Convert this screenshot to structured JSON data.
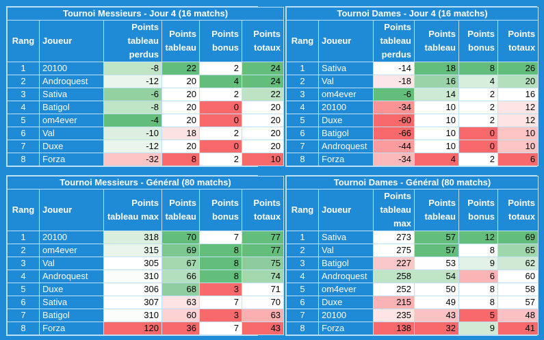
{
  "tables": [
    {
      "id": "men-day4",
      "title": "Tournoi Messieurs - Jour 4 (16 matchs)",
      "headers": [
        "Rang",
        "Joueur",
        "Points tableau perdus",
        "Points tableau",
        "Points bonus",
        "Points totaux"
      ],
      "rows": [
        {
          "rang": "1",
          "joueur": "20100",
          "values": [
            "-8",
            "22",
            "2",
            "24"
          ],
          "colors": [
            "#c0e4c6",
            "#63be7b",
            "#ffffff",
            "#63be7b"
          ]
        },
        {
          "rang": "2",
          "joueur": "Androquest",
          "values": [
            "-12",
            "20",
            "4",
            "24"
          ],
          "colors": [
            "#eaf5eb",
            "#ffffff",
            "#63be7b",
            "#63be7b"
          ]
        },
        {
          "rang": "3",
          "joueur": "Sativa",
          "values": [
            "-6",
            "20",
            "2",
            "22"
          ],
          "colors": [
            "#94d1a1",
            "#ffffff",
            "#ffffff",
            "#bde3c4"
          ]
        },
        {
          "rang": "4",
          "joueur": "Batigol",
          "values": [
            "-8",
            "20",
            "0",
            "20"
          ],
          "colors": [
            "#c0e4c6",
            "#ffffff",
            "#f8696b",
            "#ffffff"
          ]
        },
        {
          "rang": "5",
          "joueur": "om4ever",
          "values": [
            "-4",
            "20",
            "0",
            "20"
          ],
          "colors": [
            "#63be7b",
            "#ffffff",
            "#f8696b",
            "#ffffff"
          ]
        },
        {
          "rang": "6",
          "joueur": "Val",
          "values": [
            "-10",
            "18",
            "2",
            "20"
          ],
          "colors": [
            "#dcefe0",
            "#fde2e3",
            "#ffffff",
            "#ffffff"
          ]
        },
        {
          "rang": "7",
          "joueur": "Duxe",
          "values": [
            "-12",
            "20",
            "0",
            "20"
          ],
          "colors": [
            "#eaf5eb",
            "#ffffff",
            "#f8696b",
            "#ffffff"
          ]
        },
        {
          "rang": "8",
          "joueur": "Forza",
          "values": [
            "-32",
            "8",
            "2",
            "10"
          ],
          "colors": [
            "#fbc5c6",
            "#f8696b",
            "#ffffff",
            "#f8696b"
          ]
        }
      ]
    },
    {
      "id": "women-day4",
      "title": "Tournoi Dames - Jour 4 (16 matchs)",
      "headers": [
        "Rang",
        "Joueur",
        "Points tableau perdus",
        "Points tableau",
        "Points bonus",
        "Points totaux"
      ],
      "rows": [
        {
          "rang": "1",
          "joueur": "Sativa",
          "values": [
            "-14",
            "18",
            "8",
            "26"
          ],
          "colors": [
            "#ffffff",
            "#63be7b",
            "#63be7b",
            "#63be7b"
          ]
        },
        {
          "rang": "2",
          "joueur": "Val",
          "values": [
            "-18",
            "16",
            "4",
            "20"
          ],
          "colors": [
            "#fde6e7",
            "#9ad3a7",
            "#d8eedc",
            "#b3dfbd"
          ]
        },
        {
          "rang": "3",
          "joueur": "om4ever",
          "values": [
            "-6",
            "14",
            "2",
            "16"
          ],
          "colors": [
            "#63be7b",
            "#cdead4",
            "#ffffff",
            "#ffffff"
          ]
        },
        {
          "rang": "4",
          "joueur": "20100",
          "values": [
            "-34",
            "10",
            "2",
            "12"
          ],
          "colors": [
            "#f99394",
            "#ffffff",
            "#ffffff",
            "#fde5e6"
          ]
        },
        {
          "rang": "5",
          "joueur": "Duxe",
          "values": [
            "-60",
            "10",
            "2",
            "12"
          ],
          "colors": [
            "#f8696b",
            "#ffffff",
            "#ffffff",
            "#fde5e6"
          ]
        },
        {
          "rang": "6",
          "joueur": "Batigol",
          "values": [
            "-66",
            "10",
            "0",
            "10"
          ],
          "colors": [
            "#f8696b",
            "#ffffff",
            "#f8696b",
            "#fbc5c6"
          ]
        },
        {
          "rang": "7",
          "joueur": "Androquest",
          "values": [
            "-44",
            "10",
            "0",
            "10"
          ],
          "colors": [
            "#fa9c9e",
            "#ffffff",
            "#f8696b",
            "#fbc5c6"
          ]
        },
        {
          "rang": "8",
          "joueur": "Forza",
          "values": [
            "-34",
            "4",
            "2",
            "6"
          ],
          "colors": [
            "#fbb8ba",
            "#f8696b",
            "#ffffff",
            "#f8696b"
          ]
        }
      ]
    },
    {
      "id": "men-general",
      "title": "Tournoi Messieurs - Général (80 matchs)",
      "headers": [
        "Rang",
        "Joueur",
        "Points tableau max",
        "Points tableau",
        "Points bonus",
        "Points totaux"
      ],
      "rows": [
        {
          "rang": "1",
          "joueur": "20100",
          "values": [
            "318",
            "70",
            "7",
            "77"
          ],
          "colors": [
            "#d9eedd",
            "#63be7b",
            "#ffffff",
            "#63be7b"
          ]
        },
        {
          "rang": "2",
          "joueur": "om4ever",
          "values": [
            "315",
            "69",
            "8",
            "77"
          ],
          "colors": [
            "#e9f5eb",
            "#7cc890",
            "#63be7b",
            "#63be7b"
          ]
        },
        {
          "rang": "3",
          "joueur": "Val",
          "values": [
            "305",
            "67",
            "8",
            "75"
          ],
          "colors": [
            "#ffffff",
            "#a3d8af",
            "#63be7b",
            "#8dcd9d"
          ]
        },
        {
          "rang": "4",
          "joueur": "Androquest",
          "values": [
            "310",
            "66",
            "8",
            "74"
          ],
          "colors": [
            "#fafdfa",
            "#b4dfbe",
            "#63be7b",
            "#a3d8af"
          ]
        },
        {
          "rang": "5",
          "joueur": "Duxe",
          "values": [
            "306",
            "68",
            "3",
            "71"
          ],
          "colors": [
            "#ffffff",
            "#8fce9f",
            "#f8696b",
            "#ffffff"
          ]
        },
        {
          "rang": "6",
          "joueur": "Sativa",
          "values": [
            "307",
            "63",
            "7",
            "70"
          ],
          "colors": [
            "#fefffe",
            "#fde3e4",
            "#ffffff",
            "#fefefe"
          ]
        },
        {
          "rang": "7",
          "joueur": "Batigol",
          "values": [
            "310",
            "60",
            "3",
            "63"
          ],
          "colors": [
            "#fafdfa",
            "#fcd2d3",
            "#f8696b",
            "#fab0b1"
          ]
        },
        {
          "rang": "8",
          "joueur": "Forza",
          "values": [
            "120",
            "36",
            "7",
            "43"
          ],
          "colors": [
            "#f8696b",
            "#f8696b",
            "#ffffff",
            "#f8696b"
          ]
        }
      ]
    },
    {
      "id": "women-general",
      "title": "Tournoi Dames - Général (80 matchs)",
      "headers": [
        "Rang",
        "Joueur",
        "Points tableau max",
        "Points tableau",
        "Points bonus",
        "Points totaux"
      ],
      "rows": [
        {
          "rang": "1",
          "joueur": "Sativa",
          "values": [
            "273",
            "57",
            "12",
            "69"
          ],
          "colors": [
            "#ffffff",
            "#63be7b",
            "#63be7b",
            "#63be7b"
          ]
        },
        {
          "rang": "2",
          "joueur": "Val",
          "values": [
            "275",
            "57",
            "8",
            "65"
          ],
          "colors": [
            "#ffffff",
            "#63be7b",
            "#ffffff",
            "#9fd6ab"
          ]
        },
        {
          "rang": "3",
          "joueur": "Batigol",
          "values": [
            "227",
            "53",
            "9",
            "62"
          ],
          "colors": [
            "#fbc8c9",
            "#fefefe",
            "#e3f2e6",
            "#cfe9d5"
          ]
        },
        {
          "rang": "4",
          "joueur": "Androquest",
          "values": [
            "258",
            "54",
            "6",
            "60"
          ],
          "colors": [
            "#bfe4c6",
            "#c0e4c6",
            "#fab4b5",
            "#ffffff"
          ]
        },
        {
          "rang": "5",
          "joueur": "om4ever",
          "values": [
            "252",
            "50",
            "8",
            "58"
          ],
          "colors": [
            "#ffffff",
            "#ffffff",
            "#ffffff",
            "#ffffff"
          ]
        },
        {
          "rang": "6",
          "joueur": "Duxe",
          "values": [
            "215",
            "49",
            "8",
            "57"
          ],
          "colors": [
            "#fab3b4",
            "#ffffff",
            "#ffffff",
            "#fefefe"
          ]
        },
        {
          "rang": "7",
          "joueur": "20100",
          "values": [
            "235",
            "43",
            "5",
            "48"
          ],
          "colors": [
            "#fde4e5",
            "#fbc2c3",
            "#f8696b",
            "#fbc0c1"
          ]
        },
        {
          "rang": "8",
          "joueur": "Forza",
          "values": [
            "138",
            "32",
            "9",
            "41"
          ],
          "colors": [
            "#f8696b",
            "#f8696b",
            "#d0ead6",
            "#f8696b"
          ]
        }
      ]
    }
  ]
}
